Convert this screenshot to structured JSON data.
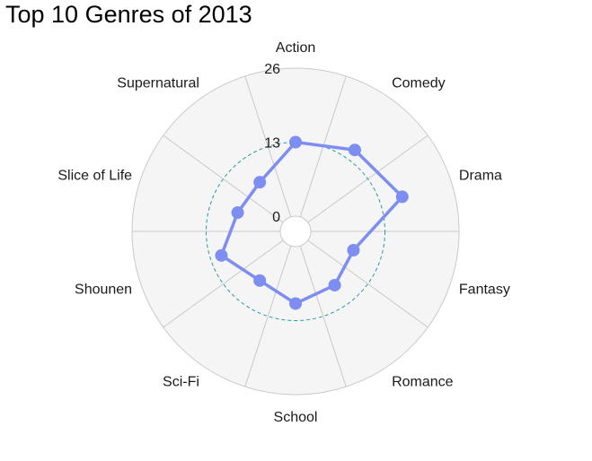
{
  "chart_data": {
    "type": "radar",
    "title": "Top 10 Genres of 2013",
    "categories": [
      "Action",
      "Comedy",
      "Drama",
      "Fantasy",
      "Romance",
      "School",
      "Sci-Fi",
      "Shounen",
      "Slice of Life",
      "Supernatural"
    ],
    "series": [
      {
        "values": [
          13,
          15,
          17,
          8,
          9,
          10,
          8,
          11,
          8,
          8
        ]
      }
    ],
    "rlim": [
      0,
      26
    ],
    "rticks": [
      0,
      13,
      26
    ],
    "tick_labels": [
      "0",
      "13",
      "26"
    ],
    "reference_ring": 13,
    "grid": true,
    "colors": {
      "series": "#7d8ef0",
      "reference_ring": "#2a9a9a",
      "panel": "#f5f5f5",
      "grid": "#c9c9c9"
    }
  }
}
